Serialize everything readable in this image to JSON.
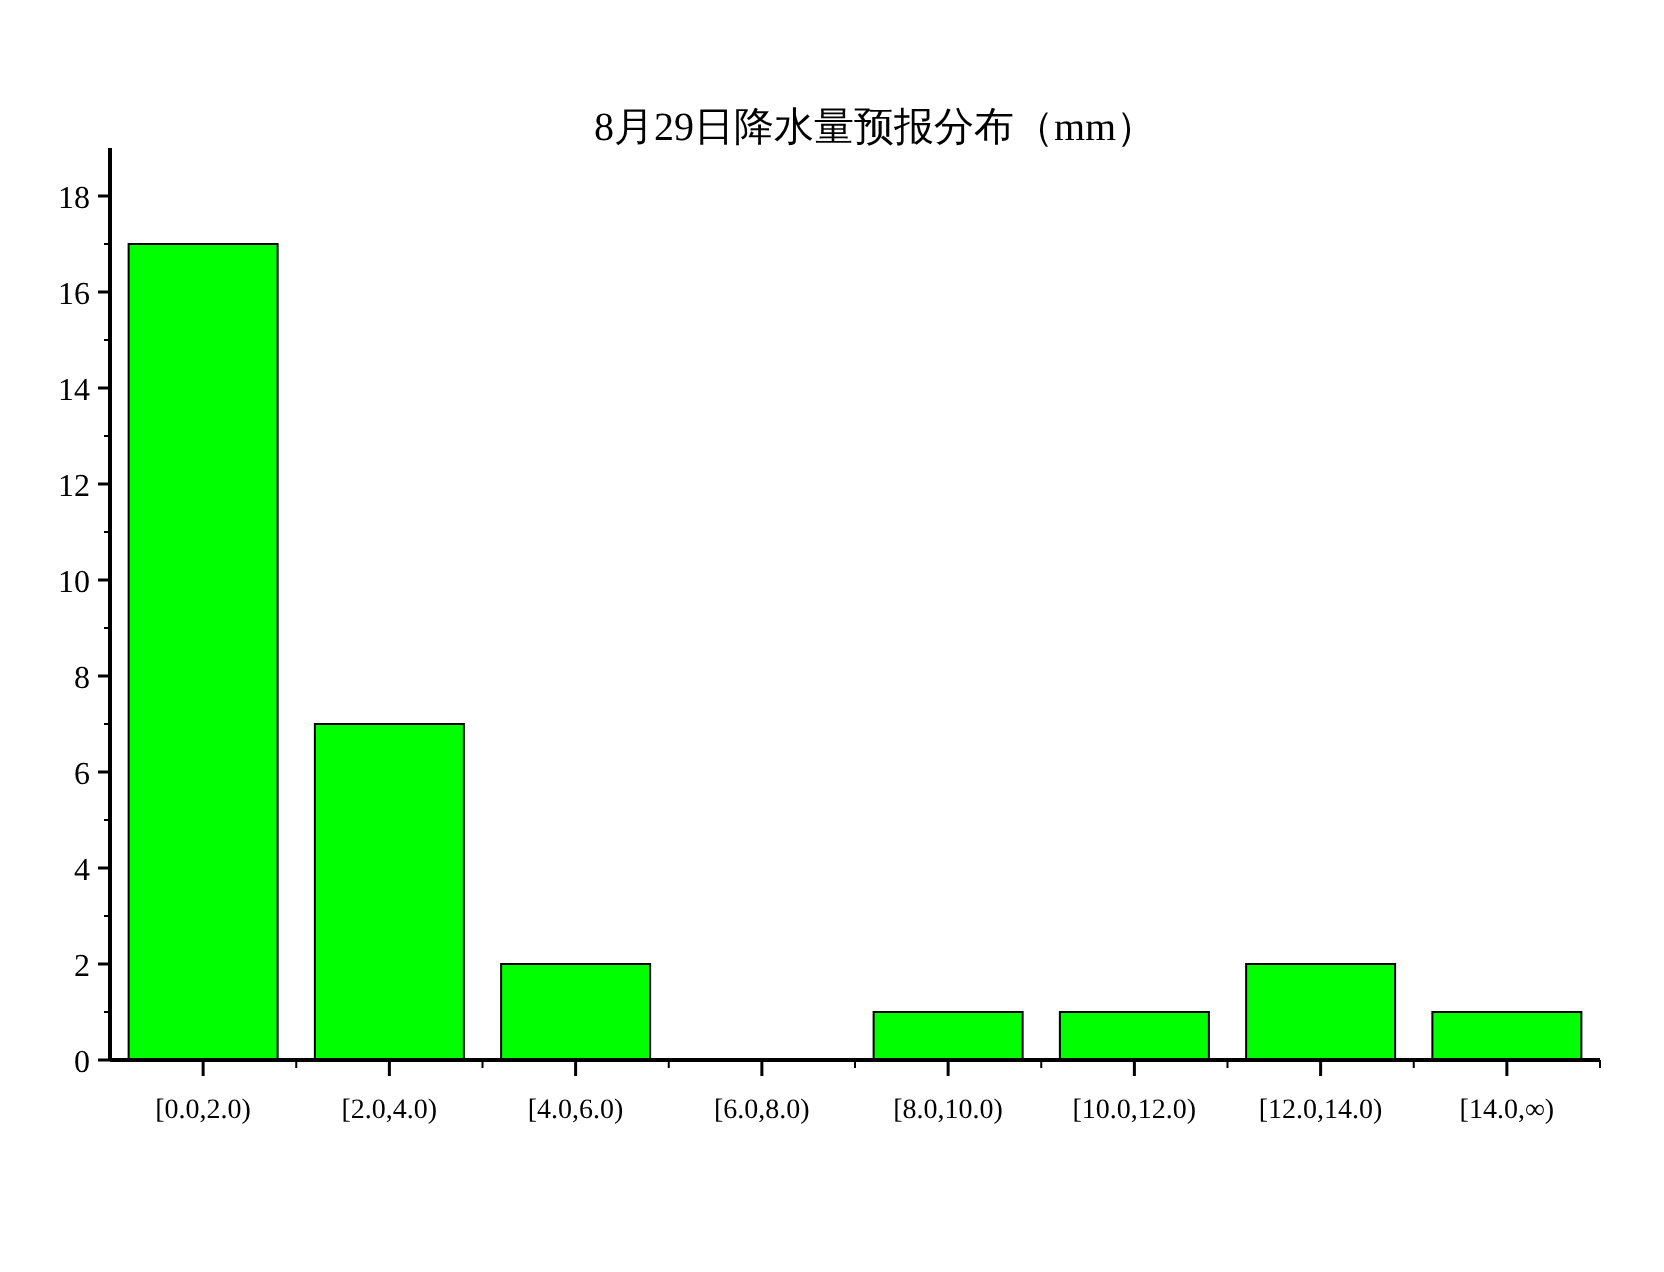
{
  "chart_data": {
    "type": "bar",
    "title": "8月29日降水量预报分布（mm）",
    "categories": [
      "[0.0,2.0)",
      "[2.0,4.0)",
      "[4.0,6.0)",
      "[6.0,8.0)",
      "[8.0,10.0)",
      "[10.0,12.0)",
      "[12.0,14.0)",
      "[14.0,∞)"
    ],
    "values": [
      17,
      7,
      2,
      0,
      1,
      1,
      2,
      1
    ],
    "color": "#00ff00",
    "ylim": [
      0,
      19
    ],
    "yticks": [
      0,
      2,
      4,
      6,
      8,
      10,
      12,
      14,
      16,
      18
    ],
    "grid": false
  }
}
